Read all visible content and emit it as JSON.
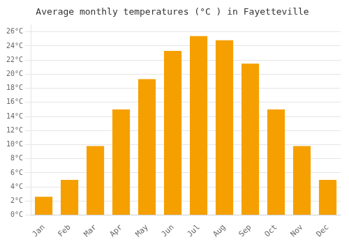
{
  "chart_data": {
    "type": "bar",
    "title": "Average monthly temperatures (°C ) in Fayetteville",
    "categories": [
      "Jan",
      "Feb",
      "Mar",
      "Apr",
      "May",
      "Jun",
      "Jul",
      "Aug",
      "Sep",
      "Oct",
      "Nov",
      "Dec"
    ],
    "values": [
      2.6,
      5.0,
      9.8,
      15.0,
      19.3,
      23.3,
      25.4,
      24.8,
      21.5,
      15.0,
      9.8,
      5.0
    ],
    "color": "#F5A000",
    "ylim": [
      0,
      27
    ],
    "yticks": [
      {
        "value": 0,
        "label": "0°C"
      },
      {
        "value": 2,
        "label": "2°C"
      },
      {
        "value": 4,
        "label": "4°C"
      },
      {
        "value": 6,
        "label": "6°C"
      },
      {
        "value": 8,
        "label": "8°C"
      },
      {
        "value": 10,
        "label": "10°C"
      },
      {
        "value": 12,
        "label": "12°C"
      },
      {
        "value": 14,
        "label": "14°C"
      },
      {
        "value": 16,
        "label": "16°C"
      },
      {
        "value": 18,
        "label": "18°C"
      },
      {
        "value": 20,
        "label": "20°C"
      },
      {
        "value": 22,
        "label": "22°C"
      },
      {
        "value": 24,
        "label": "24°C"
      },
      {
        "value": 26,
        "label": "26°C"
      }
    ],
    "grid": true
  }
}
